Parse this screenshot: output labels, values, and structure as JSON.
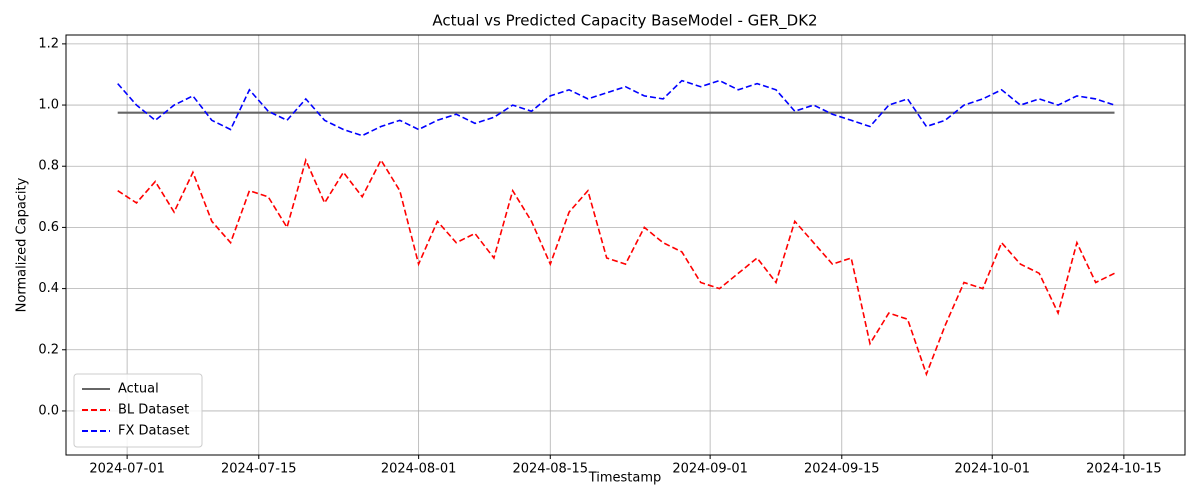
{
  "chart_data": {
    "type": "line",
    "title": "Actual vs Predicted Capacity BaseModel - GER_DK2",
    "x_label": "Timestamp",
    "y_label": "Normalized Capacity",
    "x": [
      "2024-06-30",
      "2024-07-02",
      "2024-07-04",
      "2024-07-06",
      "2024-07-08",
      "2024-07-10",
      "2024-07-12",
      "2024-07-14",
      "2024-07-16",
      "2024-07-18",
      "2024-07-20",
      "2024-07-22",
      "2024-07-24",
      "2024-07-26",
      "2024-07-28",
      "2024-07-30",
      "2024-08-01",
      "2024-08-03",
      "2024-08-05",
      "2024-08-07",
      "2024-08-09",
      "2024-08-11",
      "2024-08-13",
      "2024-08-15",
      "2024-08-17",
      "2024-08-19",
      "2024-08-21",
      "2024-08-23",
      "2024-08-25",
      "2024-08-27",
      "2024-08-29",
      "2024-08-31",
      "2024-09-02",
      "2024-09-04",
      "2024-09-06",
      "2024-09-08",
      "2024-09-10",
      "2024-09-12",
      "2024-09-14",
      "2024-09-16",
      "2024-09-18",
      "2024-09-20",
      "2024-09-22",
      "2024-09-24",
      "2024-09-26",
      "2024-09-28",
      "2024-09-30",
      "2024-10-02",
      "2024-10-04",
      "2024-10-06",
      "2024-10-08",
      "2024-10-10",
      "2024-10-12",
      "2024-10-14"
    ],
    "series": [
      {
        "name": "Actual",
        "color": "#666666",
        "linestyle": "solid",
        "values": [
          0.975,
          0.975,
          0.975,
          0.975,
          0.975,
          0.975,
          0.975,
          0.975,
          0.975,
          0.975,
          0.975,
          0.975,
          0.975,
          0.975,
          0.975,
          0.975,
          0.975,
          0.975,
          0.975,
          0.975,
          0.975,
          0.975,
          0.975,
          0.975,
          0.975,
          0.975,
          0.975,
          0.975,
          0.975,
          0.975,
          0.975,
          0.975,
          0.975,
          0.975,
          0.975,
          0.975,
          0.975,
          0.975,
          0.975,
          0.975,
          0.975,
          0.975,
          0.975,
          0.975,
          0.975,
          0.975,
          0.975,
          0.975,
          0.975,
          0.975,
          0.975,
          0.975,
          0.975,
          0.975
        ]
      },
      {
        "name": "BL Dataset",
        "color": "#ff0000",
        "linestyle": "dashed",
        "values": [
          0.72,
          0.68,
          0.75,
          0.65,
          0.78,
          0.62,
          0.55,
          0.72,
          0.7,
          0.6,
          0.82,
          0.68,
          0.78,
          0.7,
          0.82,
          0.72,
          0.48,
          0.62,
          0.55,
          0.58,
          0.5,
          0.72,
          0.62,
          0.48,
          0.65,
          0.72,
          0.5,
          0.48,
          0.6,
          0.55,
          0.52,
          0.42,
          0.4,
          0.45,
          0.5,
          0.42,
          0.62,
          0.55,
          0.48,
          0.5,
          0.22,
          0.32,
          0.3,
          0.12,
          0.28,
          0.42,
          0.4,
          0.55,
          0.48,
          0.45,
          0.32,
          0.55,
          0.42,
          0.45
        ]
      },
      {
        "name": "FX Dataset",
        "color": "#0000ff",
        "linestyle": "dashed",
        "values": [
          1.07,
          1.0,
          0.95,
          1.0,
          1.03,
          0.95,
          0.92,
          1.05,
          0.98,
          0.95,
          1.02,
          0.95,
          0.92,
          0.9,
          0.93,
          0.95,
          0.92,
          0.95,
          0.97,
          0.94,
          0.96,
          1.0,
          0.98,
          1.03,
          1.05,
          1.02,
          1.04,
          1.06,
          1.03,
          1.02,
          1.08,
          1.06,
          1.08,
          1.05,
          1.07,
          1.05,
          0.98,
          1.0,
          0.97,
          0.95,
          0.93,
          1.0,
          1.02,
          0.93,
          0.95,
          1.0,
          1.02,
          1.05,
          1.0,
          1.02,
          1.0,
          1.03,
          1.02,
          1.0
        ]
      }
    ],
    "xlim": [
      "2024-06-24T12:00",
      "2024-10-21T12:00"
    ],
    "xticks": [
      "2024-07-01",
      "2024-07-15",
      "2024-08-01",
      "2024-08-15",
      "2024-09-01",
      "2024-09-15",
      "2024-10-01",
      "2024-10-15"
    ],
    "ylim": [
      -0.144,
      1.229
    ],
    "yticks": [
      {
        "value": 0,
        "label": "0.0"
      },
      0.2,
      0.4,
      0.6,
      0.8,
      {
        "value": 1,
        "label": "1.0"
      },
      1.2
    ],
    "grid": true,
    "legend": "lower left"
  }
}
